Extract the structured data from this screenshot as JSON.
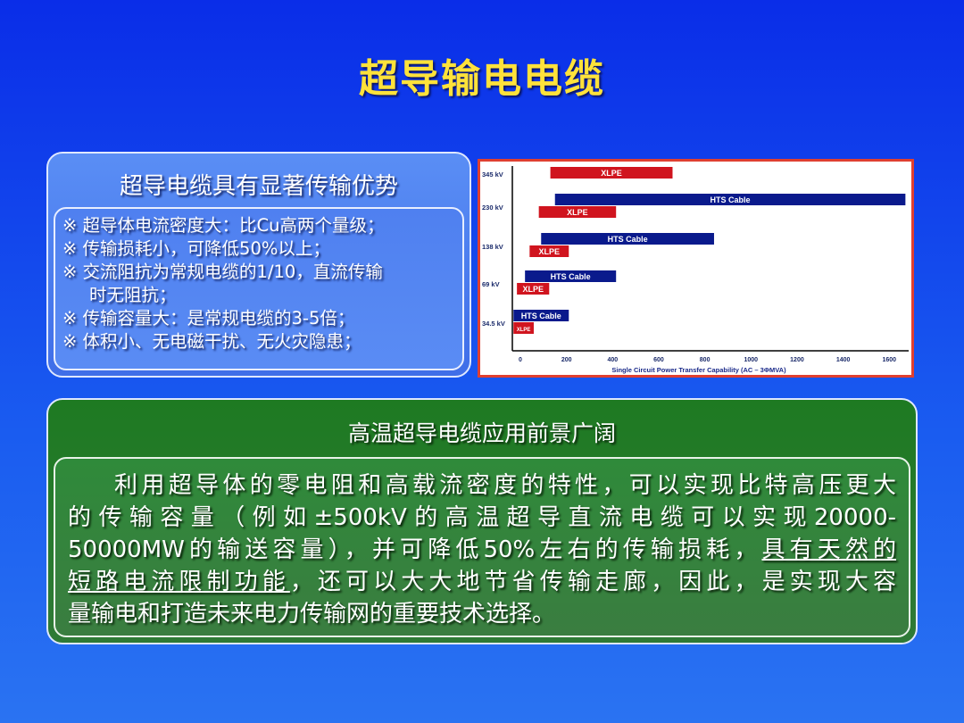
{
  "title": "超导输电电缆",
  "advantages": {
    "heading": "超导电缆具有显著传输优势",
    "items": [
      "※ 超导体电流密度大：比Cu高两个量级；",
      "※ 传输损耗小，可降低50%以上；",
      "※ 交流阻抗为常规电缆的1/10，直流传输",
      "时无阻抗；",
      "※ 传输容量大：是常规电缆的3-5倍；",
      "※ 体积小、无电磁干扰、无火灾隐患；"
    ]
  },
  "prospect": {
    "heading": "高温超导电缆应用前景广阔",
    "lines": [
      {
        "a": "利用超导体的零电阻和高载流密度的特性，可以实现比特高压更大"
      },
      {
        "a": "的传输容量（例如±500kV的高温超导直流电缆可以实现20000-"
      },
      {
        "a": "50000MW的输送容量），并可降低50%左右的传输损耗，",
        "u": "具有天然的"
      },
      {
        "u": "短路电流限制功能",
        "a": "，还可以大大地节省传输走廊，因此，是实现大容"
      },
      {
        "a": "量输电和打造未来电力传输网的重要技术选择。"
      }
    ]
  },
  "colors": {
    "hts": "#0a1a8c",
    "xlpe": "#d0141e",
    "title": "#ffe23a"
  },
  "chart_data": {
    "type": "bar",
    "orientation": "horizontal",
    "floating": true,
    "categories": [
      "345 kV",
      "230 kV",
      "138 kV",
      "69 kV",
      "34.5 kV"
    ],
    "series": [
      {
        "name": "HTS Cable",
        "ranges": [
          null,
          [
            150,
            1670
          ],
          [
            90,
            840
          ],
          [
            20,
            415
          ],
          [
            -30,
            210
          ]
        ]
      },
      {
        "name": "XLPE",
        "ranges": [
          [
            130,
            660
          ],
          [
            80,
            415
          ],
          [
            40,
            210
          ],
          [
            -15,
            125
          ],
          [
            -30,
            58
          ]
        ]
      }
    ],
    "xlabel": "Single Circuit Power Transfer Capability (AC – 3ΦMVA)",
    "xticks": [
      0,
      200,
      400,
      600,
      800,
      1000,
      1200,
      1400,
      1600
    ],
    "xlim": [
      -30,
      1690
    ],
    "grid": false
  }
}
